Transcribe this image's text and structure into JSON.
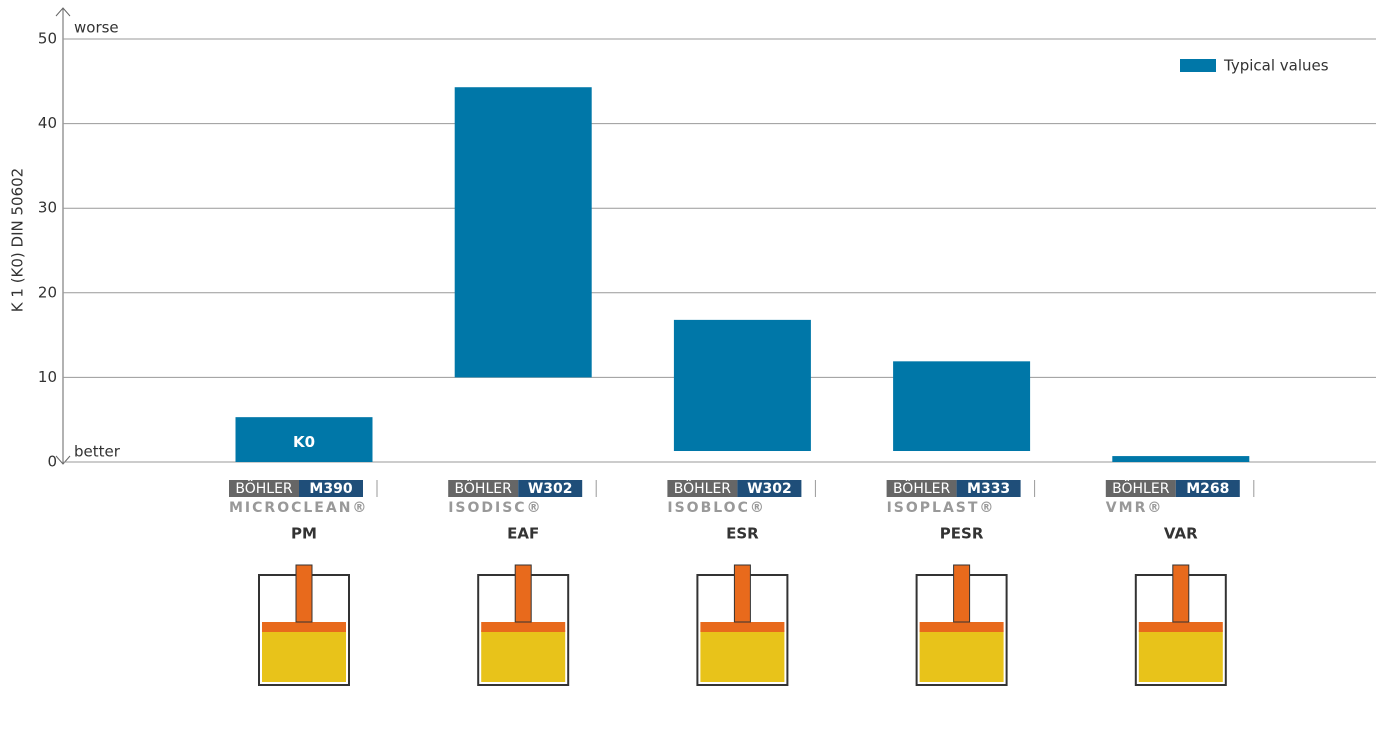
{
  "chart_data": {
    "type": "floating-bar",
    "y_label": "K 1 (K0) DIN 50602",
    "top_note": "worse",
    "bottom_note": "better",
    "categories": [
      "PM",
      "EAF",
      "ESR",
      "PESR",
      "VAR"
    ],
    "brand": "BÖHLER",
    "grades": [
      "M390",
      "W302",
      "W302",
      "M333",
      "M268"
    ],
    "products": [
      "MICROCLEAN®",
      "ISODISC®",
      "ISOBLOC®",
      "ISOPLAST®",
      "VMR®"
    ],
    "series": [
      {
        "name": "Typical values",
        "color": "#0077a8",
        "low": [
          0,
          10,
          1.3,
          1.3,
          0
        ],
        "values": [
          5.3,
          44.3,
          16.8,
          11.9,
          0.7
        ],
        "bar_labels": [
          "K0",
          null,
          null,
          null,
          null
        ]
      }
    ],
    "ylim": [
      0,
      50
    ],
    "yticks": [
      0,
      10,
      20,
      30,
      40,
      50
    ],
    "grid": true,
    "legend": "top-right"
  }
}
